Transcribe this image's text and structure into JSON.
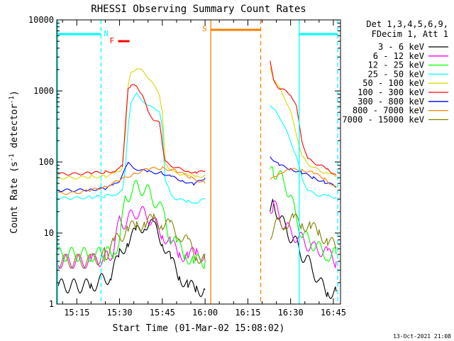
{
  "chart_data": {
    "type": "line",
    "title": "RHESSI Observing Summary Count Rates",
    "xlabel": "Start Time (01-Mar-02 15:08:02)",
    "ylabel": "Count Rate (s^-1 detector^-1)",
    "ylabel_parts": {
      "base": "Count Rate (s",
      "sup1": "-1",
      "mid": " detector",
      "sup2": "-1",
      "end": ")"
    },
    "yscale": "log",
    "ylim": [
      1,
      10000
    ],
    "xlim": [
      7.97,
      107.5
    ],
    "x_units": "minutes after 15:00 UT",
    "x_ticks": [
      {
        "value": 15,
        "label": "15:15"
      },
      {
        "value": 30,
        "label": "15:30"
      },
      {
        "value": 45,
        "label": "15:45"
      },
      {
        "value": 60,
        "label": "16:00"
      },
      {
        "value": 75,
        "label": "16:15"
      },
      {
        "value": 90,
        "label": "16:30"
      },
      {
        "value": 105,
        "label": "16:45"
      }
    ],
    "y_ticks": [
      {
        "value": 1,
        "label": "1"
      },
      {
        "value": 10,
        "label": "10"
      },
      {
        "value": 100,
        "label": "100"
      },
      {
        "value": 1000,
        "label": "1000"
      },
      {
        "value": 10000,
        "label": "10000"
      }
    ],
    "legend_header": [
      "Det 1,3,4,5,6,9,",
      "FDecim 1, Att 1"
    ],
    "legend_placement": "right",
    "footer": "13-Oct-2021 21:08",
    "gaps": [
      [
        61.2,
        82.5
      ]
    ],
    "night_intervals": [
      [
        8.3,
        23.5
      ],
      [
        93.0,
        106.5
      ]
    ],
    "night_marker": "N",
    "flare_marker": {
      "label": "F",
      "x": [
        29.5,
        33.5
      ]
    },
    "saa_marker": {
      "label": "S",
      "x": [
        62.0,
        79.5
      ]
    },
    "flag_lines": [
      {
        "x": 8.3,
        "color": "#00ffff",
        "style": "solid"
      },
      {
        "x": 23.5,
        "color": "#00ffff",
        "style": "dashed"
      },
      {
        "x": 93.0,
        "color": "#00ffff",
        "style": "solid"
      },
      {
        "x": 106.5,
        "color": "#00ffff",
        "style": "dashed"
      },
      {
        "x": 62.0,
        "color": "#ff8000",
        "style": "solid"
      },
      {
        "x": 79.5,
        "color": "#ff8000",
        "style": "dashed"
      }
    ],
    "series": [
      {
        "name": "3 - 6 keV",
        "color": "#000000",
        "x": [
          8.5,
          20,
          27,
          30,
          33,
          36,
          39,
          42,
          45,
          48,
          51,
          54,
          57,
          60,
          82.8,
          84,
          86,
          88,
          90,
          92,
          94,
          96,
          98,
          100,
          103,
          106
        ],
        "values": [
          1.8,
          1.8,
          2.5,
          5,
          8,
          10,
          14,
          12,
          8,
          4,
          2.5,
          1.8,
          1.6,
          1.6,
          20,
          25,
          18,
          12,
          9,
          7,
          5,
          4,
          3,
          2,
          1.5,
          1.5
        ]
      },
      {
        "name": "6 - 12 keV",
        "color": "#ff00ff",
        "x": [
          8.5,
          20,
          26,
          28,
          30,
          32,
          34,
          36,
          38,
          40,
          42,
          45,
          48,
          51,
          54,
          57,
          60,
          82.8,
          84,
          86,
          88,
          90,
          92,
          94,
          96,
          98,
          100,
          103,
          106
        ],
        "values": [
          4,
          4,
          4.5,
          6,
          15,
          14,
          17,
          20,
          19,
          17,
          14,
          10,
          7,
          5,
          5,
          5,
          5,
          22,
          26,
          17,
          13,
          10,
          9,
          8,
          7,
          6,
          6,
          5,
          4
        ]
      },
      {
        "name": "12 - 25 keV",
        "color": "#00ff00",
        "x": [
          8.5,
          20,
          25,
          28,
          30,
          32,
          34,
          36,
          38,
          40,
          42,
          45,
          47,
          50,
          53,
          56,
          60,
          82.8,
          84,
          86,
          88,
          90,
          92,
          94,
          96,
          98,
          100,
          103,
          106
        ],
        "values": [
          5,
          5,
          5,
          5.5,
          8,
          30,
          38,
          45,
          42,
          38,
          30,
          20,
          10,
          7,
          5,
          4,
          4,
          65,
          75,
          65,
          48,
          35,
          15,
          10,
          8,
          7,
          6,
          5,
          5
        ]
      },
      {
        "name": "25 - 50 keV",
        "color": "#00ffff",
        "x": [
          8.5,
          15,
          20,
          25,
          28,
          30,
          31,
          32,
          33,
          34,
          36,
          38,
          40,
          42,
          44,
          45,
          46,
          48,
          50,
          54,
          57,
          60,
          82.8,
          84,
          86,
          88,
          90,
          92,
          94,
          96,
          98,
          100,
          103,
          106
        ],
        "values": [
          31,
          31,
          32,
          33,
          35,
          37,
          40,
          80,
          300,
          700,
          900,
          750,
          600,
          600,
          500,
          300,
          55,
          35,
          30,
          28,
          27,
          30,
          650,
          550,
          450,
          300,
          200,
          120,
          60,
          40,
          36,
          34,
          33,
          32
        ]
      },
      {
        "name": "50 - 100 keV",
        "color": "#d8d800",
        "x": [
          8.5,
          15,
          20,
          25,
          28,
          30,
          31,
          32,
          33,
          34,
          36,
          38,
          40,
          42,
          44,
          45,
          46,
          48,
          50,
          54,
          57,
          60,
          82.8,
          84,
          86,
          88,
          90,
          92,
          94,
          96,
          98,
          100,
          103,
          106
        ],
        "values": [
          60,
          60,
          62,
          63,
          68,
          75,
          85,
          250,
          1200,
          1800,
          2100,
          1900,
          1600,
          1200,
          900,
          500,
          100,
          75,
          70,
          65,
          62,
          65,
          2100,
          1500,
          1100,
          800,
          500,
          250,
          120,
          95,
          85,
          75,
          70,
          62
        ]
      },
      {
        "name": "100 - 300 keV",
        "color": "#ff0000",
        "x": [
          8.5,
          15,
          20,
          25,
          28,
          30,
          31,
          32,
          33,
          34,
          36,
          38,
          40,
          42,
          44,
          45,
          46,
          48,
          50,
          54,
          57,
          60,
          82.8,
          84,
          86,
          88,
          90,
          92,
          94,
          96,
          98,
          100,
          103,
          106
        ],
        "values": [
          68,
          68,
          70,
          72,
          75,
          80,
          90,
          300,
          1100,
          1200,
          1150,
          900,
          500,
          400,
          350,
          180,
          100,
          90,
          82,
          75,
          70,
          75,
          2700,
          1400,
          1100,
          1000,
          900,
          600,
          200,
          110,
          100,
          90,
          80,
          65
        ]
      },
      {
        "name": "300 - 800 keV",
        "color": "#0000ff",
        "x": [
          8.5,
          15,
          20,
          25,
          28,
          30,
          33,
          36,
          40,
          45,
          48,
          52,
          56,
          60,
          82.8,
          86,
          90,
          94,
          98,
          102,
          106
        ],
        "values": [
          40,
          40,
          41,
          42,
          48,
          55,
          95,
          80,
          72,
          70,
          62,
          55,
          48,
          60,
          120,
          90,
          80,
          70,
          60,
          52,
          45
        ]
      },
      {
        "name": "800 - 7000 keV",
        "color": "#ff8000",
        "x": [
          8.5,
          15,
          20,
          25,
          30,
          35,
          40,
          45,
          50,
          55,
          60,
          82.8,
          86,
          90,
          94,
          98,
          102,
          106
        ],
        "values": [
          36,
          37,
          40,
          45,
          55,
          68,
          80,
          82,
          75,
          60,
          50,
          55,
          70,
          78,
          78,
          70,
          58,
          43
        ]
      },
      {
        "name": "7000 - 15000 keV",
        "color": "#808000",
        "x": [
          8.5,
          20,
          25,
          28,
          30,
          33,
          36,
          39,
          42,
          45,
          48,
          51,
          54,
          57,
          60,
          82.8,
          85,
          88,
          91,
          94,
          97,
          100,
          103,
          106
        ],
        "values": [
          4,
          4,
          5,
          7,
          9,
          11,
          13,
          14,
          15,
          14,
          12,
          10,
          7,
          5,
          4,
          10,
          13,
          14,
          15,
          14,
          12,
          10,
          8,
          6
        ]
      }
    ]
  }
}
